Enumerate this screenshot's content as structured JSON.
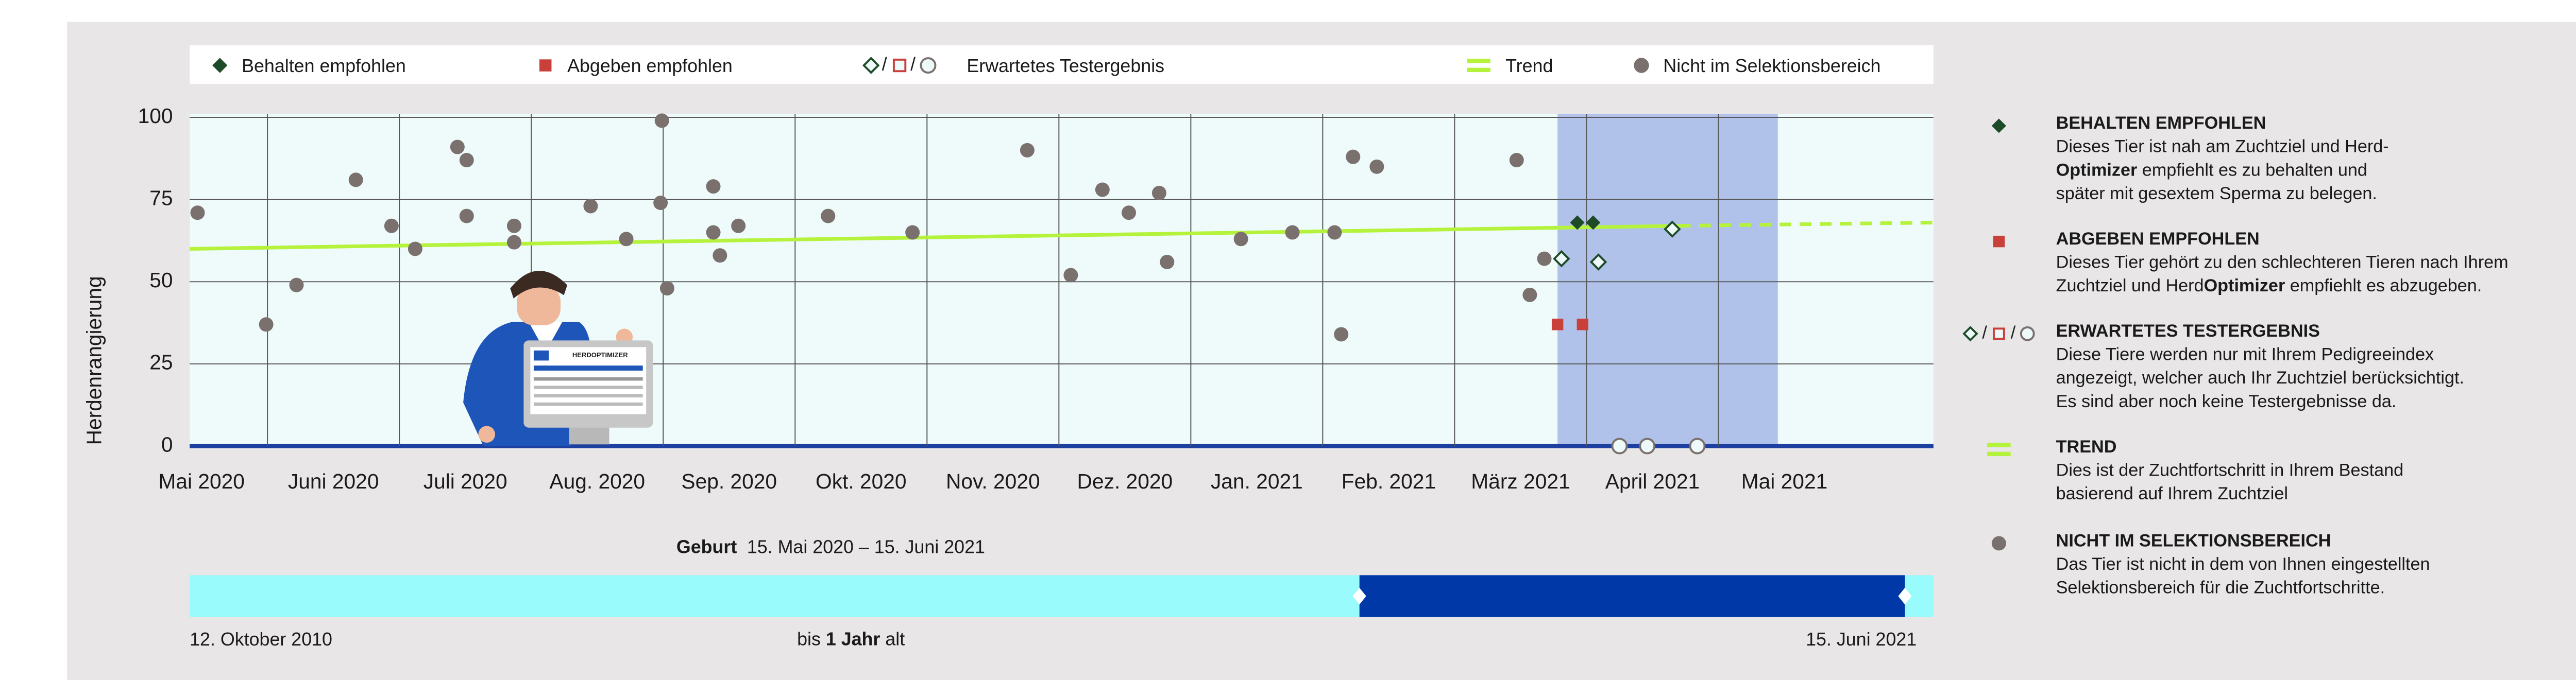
{
  "chart_data": {
    "type": "scatter",
    "y_label": "Herdenrangierung",
    "xlim": [
      0.41,
      13.63
    ],
    "xticks": [
      {
        "value": 0,
        "label": "Mai 2020"
      },
      {
        "value": 1,
        "label": "Juni 2020"
      },
      {
        "value": 2,
        "label": "Juli 2020"
      },
      {
        "value": 3,
        "label": "Aug. 2020"
      },
      {
        "value": 4,
        "label": "Sep. 2020"
      },
      {
        "value": 5,
        "label": "Okt. 2020"
      },
      {
        "value": 6,
        "label": "Nov. 2020"
      },
      {
        "value": 7,
        "label": "Dez. 2020"
      },
      {
        "value": 8,
        "label": "Jan. 2021"
      },
      {
        "value": 9,
        "label": "Feb. 2021"
      },
      {
        "value": 10,
        "label": "März 2021"
      },
      {
        "value": 11,
        "label": "April 2021"
      },
      {
        "value": 12,
        "label": "Mai 2021"
      }
    ],
    "ylim": [
      0,
      100
    ],
    "yticks": [
      0,
      25,
      50,
      75,
      100
    ],
    "grid": true,
    "highlight": [
      10.78,
      12.45
    ],
    "legend_separator": "/",
    "series": [
      {
        "name": "Behalten empfohlen",
        "marker": "diamond",
        "filled": true,
        "color": "#1d4a27",
        "x": [
          10.93,
          11.05
        ],
        "values": [
          68,
          68
        ]
      },
      {
        "name": "Abgeben empfohlen",
        "marker": "square",
        "filled": true,
        "color": "#c9403a",
        "x": [
          10.78,
          10.97
        ],
        "values": [
          37,
          37
        ]
      },
      {
        "name": "Erwartetes Testergebnis",
        "filled": false,
        "legend_markers": [
          "diamond",
          "square",
          "circle"
        ],
        "legend_colors": [
          "#1d4a27",
          "#c9403a",
          "#7a716e"
        ],
        "markers": [
          "diamond",
          "diamond",
          "diamond",
          "circle",
          "circle",
          "circle"
        ],
        "colors": [
          "#1d4a27",
          "#1d4a27",
          "#1d4a27",
          "#7a716e",
          "#7a716e",
          "#7a716e"
        ],
        "x": [
          10.81,
          11.09,
          11.65,
          11.25,
          11.46,
          11.84
        ],
        "values": [
          57,
          56,
          66,
          0,
          0,
          0
        ]
      },
      {
        "name": "Trend",
        "marker": "line",
        "color": "#b5f23c",
        "line_style": [
          "solid",
          "dashed"
        ],
        "x": [
          0.41,
          11.7,
          13.63
        ],
        "values": [
          60,
          67,
          68
        ]
      },
      {
        "name": "Nicht im Selektionsbereich",
        "marker": "circle",
        "filled": true,
        "color": "#7a716e",
        "x": [
          0.47,
          0.99,
          1.22,
          1.67,
          1.94,
          2.12,
          2.44,
          2.51,
          2.51,
          2.87,
          2.87,
          3.45,
          3.72,
          3.98,
          3.99,
          4.03,
          4.38,
          4.38,
          4.43,
          4.57,
          5.25,
          5.89,
          6.76,
          7.09,
          7.33,
          7.53,
          7.76,
          7.82,
          8.38,
          8.77,
          9.09,
          9.14,
          9.23,
          9.41,
          10.47,
          10.57,
          10.68
        ],
        "values": [
          71,
          37,
          49,
          81,
          67,
          60,
          91,
          87,
          70,
          67,
          62,
          73,
          63,
          74,
          99,
          48,
          79,
          65,
          58,
          67,
          70,
          65,
          90,
          52,
          78,
          71,
          77,
          56,
          63,
          65,
          65,
          34,
          88,
          85,
          87,
          46,
          57
        ]
      }
    ]
  },
  "illustration_screen_title": "HERDOPTIMIZER",
  "birth_filter": {
    "label": "Geburt",
    "range": "15. Mai 2020 – 15. Juni 2021",
    "start": "12. Oktober 2010",
    "end": "15. Juni 2021",
    "age": [
      {
        "text": "bis ",
        "bold": false
      },
      {
        "text": "1 Jahr",
        "bold": true
      },
      {
        "text": " alt",
        "bold": false
      }
    ]
  },
  "descriptions": [
    {
      "title": "BEHALTEN EMPFOHLEN",
      "lines": [
        [
          {
            "text": "Dieses Tier ist nah am Zuchtziel und Herd-",
            "bold": false
          }
        ],
        [
          {
            "text": "Optimizer",
            "bold": true
          },
          {
            "text": " empfiehlt es zu behalten und",
            "bold": false
          }
        ],
        [
          {
            "text": "später mit gesextem Sperma zu belegen.",
            "bold": false
          }
        ]
      ]
    },
    {
      "title": "ABGEBEN EMPFOHLEN",
      "lines": [
        [
          {
            "text": "Dieses Tier gehört zu den schlechteren Tieren nach Ihrem",
            "bold": false
          }
        ],
        [
          {
            "text": "Zuchtziel und Herd",
            "bold": false
          },
          {
            "text": "Optimizer",
            "bold": true
          },
          {
            "text": " empfiehlt es abzugeben.",
            "bold": false
          }
        ]
      ]
    },
    {
      "title": "ERWARTETES TESTERGEBNIS",
      "lines": [
        [
          {
            "text": "Diese Tiere werden nur mit Ihrem Pedigreeindex",
            "bold": false
          }
        ],
        [
          {
            "text": "angezeigt, welcher auch Ihr Zuchtziel berücksichtigt.",
            "bold": false
          }
        ],
        [
          {
            "text": "Es sind aber noch keine Testergebnisse da.",
            "bold": false
          }
        ]
      ]
    },
    {
      "title": "TREND",
      "lines": [
        [
          {
            "text": "Dies ist der Zuchtfortschritt in Ihrem Bestand",
            "bold": false
          }
        ],
        [
          {
            "text": "basierend auf Ihrem Zuchtziel",
            "bold": false
          }
        ]
      ]
    },
    {
      "title": "NICHT IM SELEKTIONSBEREICH",
      "lines": [
        [
          {
            "text": "Das Tier ist nicht in dem von Ihnen eingestellten",
            "bold": false
          }
        ],
        [
          {
            "text": "Selektionsbereich für die Zuchtfortschritte.",
            "bold": false
          }
        ]
      ]
    }
  ]
}
